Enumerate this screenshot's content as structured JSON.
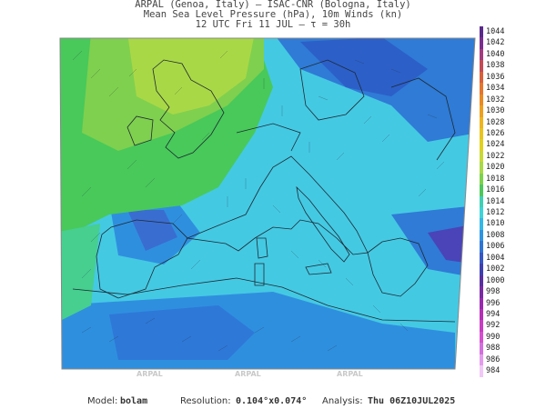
{
  "header": {
    "line1": "ARPAL (Genoa, Italy)  –  ISAC-CNR (Bologna, Italy)",
    "line2": "Mean Sea Level Pressure (hPa), 10m Winds (kn)",
    "line3": "12 UTC Fri 11 JUL  –  τ = 30h"
  },
  "colorbar": {
    "levels": [
      1044,
      1042,
      1040,
      1038,
      1036,
      1034,
      1032,
      1030,
      1028,
      1026,
      1024,
      1022,
      1020,
      1018,
      1016,
      1014,
      1012,
      1010,
      1008,
      1006,
      1004,
      1002,
      1000,
      998,
      996,
      994,
      992,
      990,
      988,
      986,
      984
    ],
    "colors": [
      "#5a2b8a",
      "#7a2f8f",
      "#a33b7f",
      "#c44a55",
      "#d9603a",
      "#e4762e",
      "#e98a22",
      "#eda01f",
      "#eeb51f",
      "#e9c41f",
      "#e1d11f",
      "#c8d935",
      "#a8d946",
      "#7dd24c",
      "#4ec85c",
      "#40d0b4",
      "#3fd4d8",
      "#34b8e6",
      "#2e94e0",
      "#2f74d4",
      "#3657c4",
      "#3f40b0",
      "#5a2fa0",
      "#7a2aa5",
      "#992ab0",
      "#b52fb8",
      "#c93cc4",
      "#d64fd0",
      "#d36fde",
      "#e59bed",
      "#f1c8f7"
    ]
  },
  "footer": {
    "model_label": "Model:",
    "model_value": "bolam",
    "resolution_label": "Resolution:",
    "resolution_value": "0.104°x0.074°",
    "analysis_label": "Analysis:",
    "analysis_value": "Thu 06Z10JUL2025"
  },
  "watermark": "ARPAL"
}
